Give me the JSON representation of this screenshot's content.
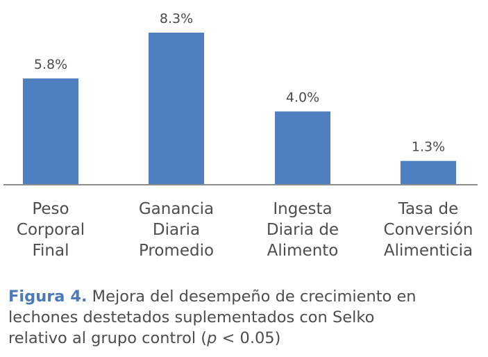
{
  "chart_data": {
    "type": "bar",
    "categories": [
      [
        "Peso",
        "Corporal",
        "Final"
      ],
      [
        "Ganancia",
        "Diaria",
        "Promedio"
      ],
      [
        "Ingesta",
        "Diaria de",
        "Alimento"
      ],
      [
        "Tasa de",
        "Conversión",
        "Alimenticia"
      ]
    ],
    "values": [
      5.8,
      8.3,
      4.0,
      1.3
    ],
    "value_labels": [
      "5.8%",
      "8.3%",
      "4.0%",
      "1.3%"
    ],
    "ylim": [
      0,
      8.3
    ],
    "bar_color": "#4f7fbf",
    "axis_color": "#8c8c8c",
    "grid": false
  },
  "caption": {
    "figure_label": "Figura 4.",
    "line1_rest": " Mejora del desempeño de crecimiento en",
    "line2": "lechones destetados suplementados con Selko",
    "line3_start": "relativo al grupo control ",
    "p_open": "(",
    "p_var": "p",
    "p_rest": " < 0.05)"
  }
}
